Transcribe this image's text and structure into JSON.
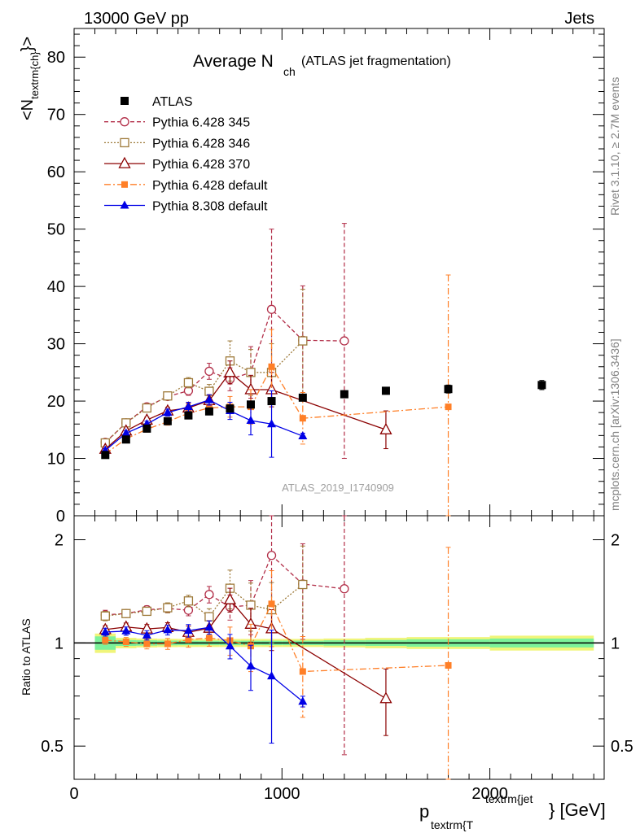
{
  "header": {
    "left": "13000 GeV pp",
    "right": "Jets"
  },
  "title": {
    "main": "Average N",
    "main_sub": "ch",
    "suffix": "(ATLAS jet fragmentation)"
  },
  "side_labels": {
    "rivet": "Rivet 3.1.10, ≥ 2.7M events",
    "mcplots": "mcplots.cern.ch [arXiv:1306.3436]"
  },
  "watermark": "ATLAS_2019_I1740909",
  "y_axis_main": {
    "label_pre": "<N",
    "label_sub": "textrm{ch}",
    "label_post": "}>"
  },
  "y_axis_ratio": {
    "label": "Ratio to ATLAS"
  },
  "x_axis": {
    "label_p": "p",
    "label_sub": "textrm{T",
    "label_sup": "textrm{jet",
    "label_post": "} [GeV]"
  },
  "chart_data": {
    "type": "scatter",
    "xlim": [
      0,
      2550
    ],
    "ylim_main": [
      0,
      85
    ],
    "ylim_ratio": [
      0.4,
      2.35
    ],
    "ratio_log_scale": true,
    "x_ticks": [
      "0",
      "1000",
      "2000"
    ],
    "y_ticks_main": [
      "0",
      "10",
      "20",
      "30",
      "40",
      "50",
      "60",
      "70",
      "80"
    ],
    "y_ticks_ratio": [
      "0.5",
      "1",
      "2"
    ],
    "colors": {
      "atlas": "#000000",
      "p345": "#b22e48",
      "p346": "#9e7a3a",
      "p370": "#8b0000",
      "p6def": "#ff7f27",
      "p8def": "#0000e6",
      "band_inner": "#7cf29a",
      "band_outer": "#f0f57a"
    },
    "series": [
      {
        "name": "ATLAS",
        "key": "atlas",
        "x": [
          150,
          250,
          350,
          450,
          550,
          650,
          750,
          850,
          950,
          1100,
          1300,
          1500,
          1800,
          2250
        ],
        "y": [
          10.6,
          13.3,
          15.2,
          16.5,
          17.5,
          18.2,
          18.7,
          19.4,
          20.0,
          20.6,
          21.2,
          21.8,
          22.1,
          22.8
        ],
        "err": [
          0.3,
          0.3,
          0.3,
          0.3,
          0.3,
          0.3,
          0.3,
          0.4,
          0.5,
          0.5,
          0.6,
          0.6,
          0.7,
          0.8
        ]
      },
      {
        "name": "Pythia 6.428 345",
        "key": "p345",
        "x": [
          150,
          250,
          350,
          450,
          550,
          650,
          750,
          850,
          950,
          1100,
          1300
        ],
        "y": [
          12.8,
          16.2,
          19.0,
          20.8,
          21.8,
          25.2,
          23.8,
          25.0,
          36.0,
          30.6,
          30.5
        ],
        "err": [
          0.4,
          0.4,
          0.5,
          0.6,
          0.8,
          1.4,
          2.0,
          4.5,
          14.0,
          9.5,
          20.5
        ]
      },
      {
        "name": "Pythia 6.428 346",
        "key": "p346",
        "x": [
          150,
          250,
          350,
          450,
          550,
          650,
          750,
          850,
          950,
          1100
        ],
        "y": [
          12.7,
          16.2,
          18.8,
          20.9,
          23.2,
          21.7,
          27.0,
          25.0,
          25.0,
          30.5
        ],
        "err": [
          0.4,
          0.4,
          0.5,
          0.7,
          0.9,
          1.2,
          3.5,
          4.0,
          5.0,
          9.0
        ]
      },
      {
        "name": "Pythia 6.428 370",
        "key": "p370",
        "x": [
          150,
          250,
          350,
          450,
          550,
          650,
          750,
          850,
          950,
          1500
        ],
        "y": [
          11.6,
          14.8,
          16.7,
          18.3,
          18.8,
          20.1,
          25.0,
          22.0,
          22.0,
          15.0
        ],
        "err": [
          0.3,
          0.4,
          0.5,
          0.6,
          0.8,
          1.0,
          2.0,
          2.5,
          3.0,
          3.3
        ]
      },
      {
        "name": "Pythia 6.428 default",
        "key": "p6def",
        "x": [
          150,
          250,
          350,
          450,
          550,
          650,
          750,
          850,
          950,
          1100,
          1800
        ],
        "y": [
          10.8,
          13.4,
          15.1,
          16.4,
          17.9,
          18.8,
          19.0,
          19.0,
          26.0,
          17.0,
          19.0
        ],
        "err": [
          0.3,
          0.4,
          0.5,
          0.6,
          0.9,
          1.0,
          1.8,
          3.0,
          6.5,
          4.5,
          23.0
        ]
      },
      {
        "name": "Pythia 8.308 default",
        "key": "p8def",
        "x": [
          150,
          250,
          350,
          450,
          550,
          650,
          750,
          850,
          950,
          1100
        ],
        "y": [
          11.4,
          14.4,
          16.0,
          18.0,
          19.0,
          20.2,
          18.3,
          16.6,
          16.0,
          13.9
        ],
        "err": [
          0.3,
          0.4,
          0.5,
          0.6,
          0.8,
          0.9,
          1.5,
          2.5,
          5.8,
          0.5
        ]
      }
    ],
    "ratio_band": {
      "x_edges": [
        100,
        200,
        300,
        400,
        500,
        600,
        700,
        800,
        900,
        1000,
        1200,
        1400,
        1600,
        2000,
        2500
      ],
      "inner": [
        0.045,
        0.02,
        0.018,
        0.016,
        0.015,
        0.015,
        0.015,
        0.015,
        0.015,
        0.015,
        0.018,
        0.02,
        0.025,
        0.03
      ],
      "outer": [
        0.065,
        0.035,
        0.03,
        0.028,
        0.027,
        0.027,
        0.027,
        0.027,
        0.027,
        0.027,
        0.03,
        0.035,
        0.04,
        0.05
      ]
    }
  },
  "legend": {
    "items": [
      {
        "label": "ATLAS",
        "key": "atlas"
      },
      {
        "label": "Pythia 6.428 345",
        "key": "p345"
      },
      {
        "label": "Pythia 6.428 346",
        "key": "p346"
      },
      {
        "label": "Pythia 6.428 370",
        "key": "p370"
      },
      {
        "label": "Pythia 6.428 default",
        "key": "p6def"
      },
      {
        "label": "Pythia 8.308 default",
        "key": "p8def"
      }
    ]
  }
}
